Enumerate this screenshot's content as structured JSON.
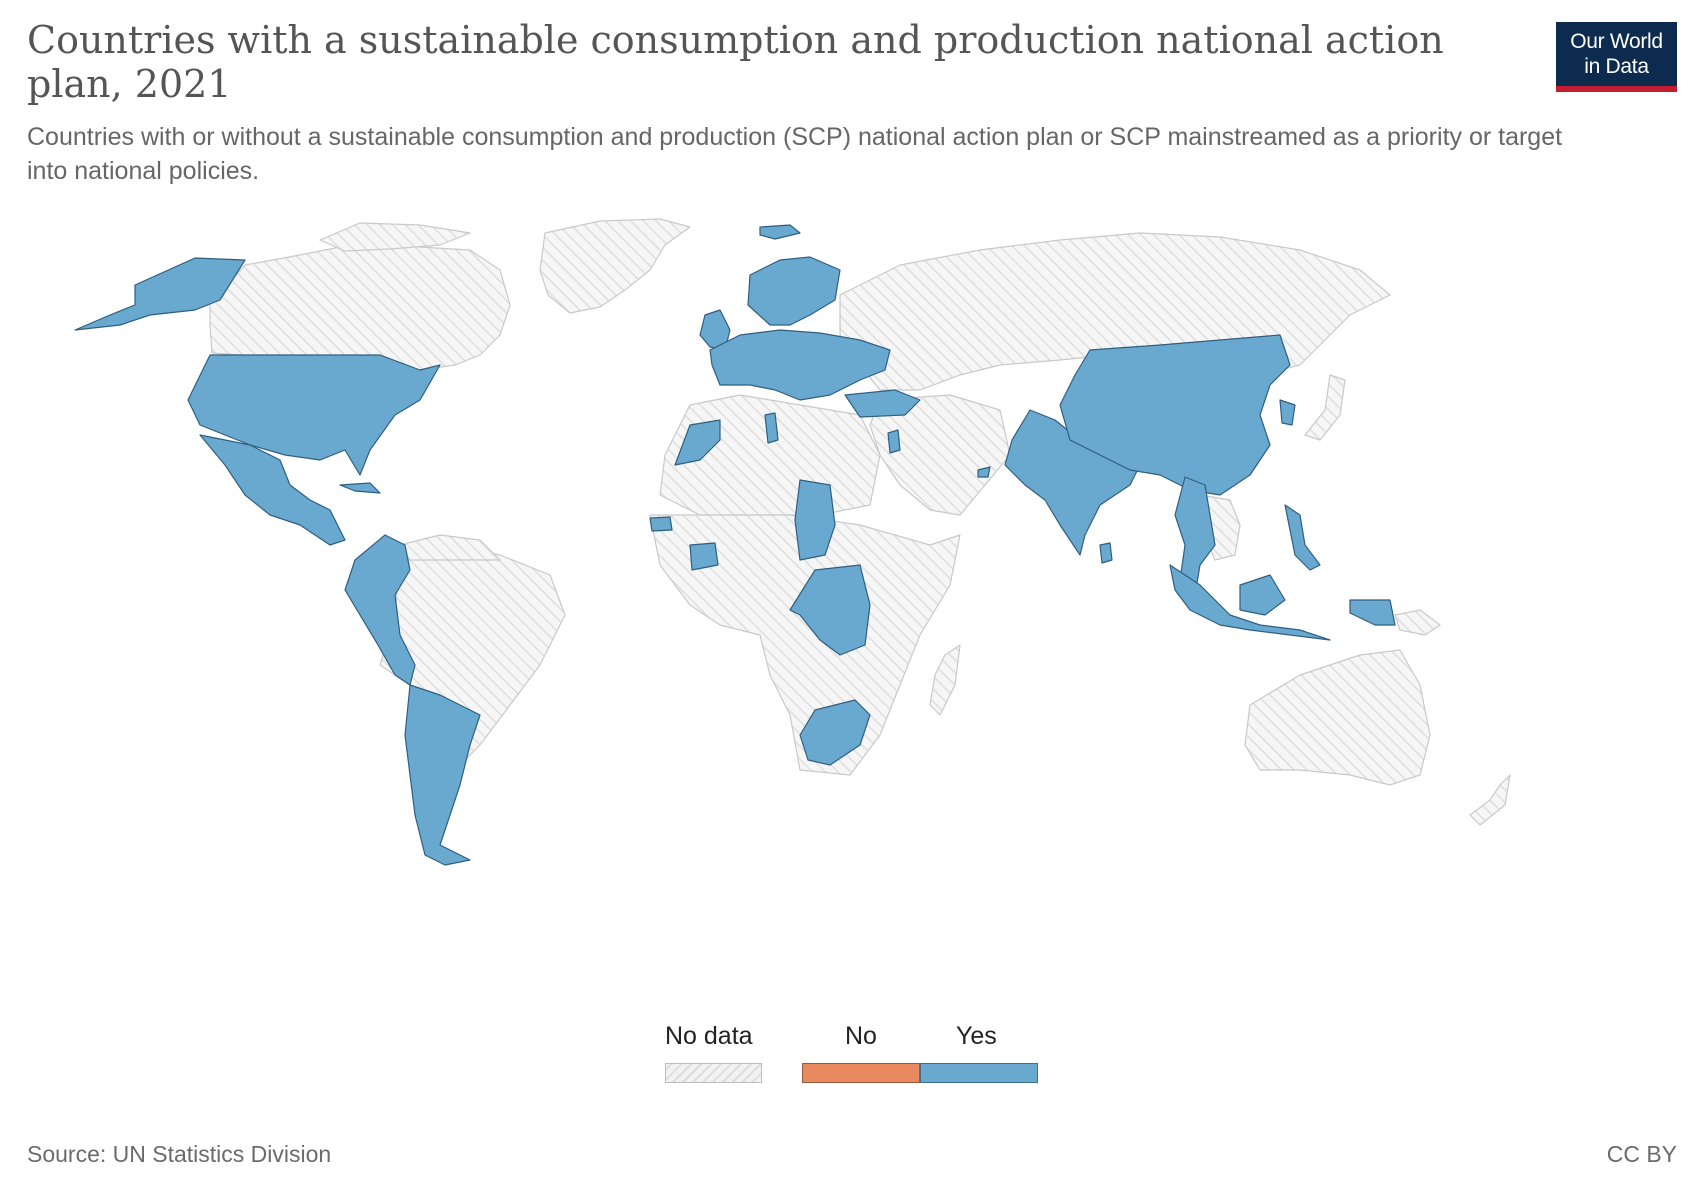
{
  "header": {
    "title": "Countries with a sustainable consumption and production national action plan, 2021",
    "subtitle": "Countries with or without a sustainable consumption and production (SCP) national action plan or SCP mainstreamed as a priority or target into national policies.",
    "logo_line1": "Our World",
    "logo_line2": "in Data"
  },
  "legend": {
    "items": [
      {
        "label": "No data",
        "key": "nodata"
      },
      {
        "label": "No",
        "key": "no",
        "color": "#e8895f"
      },
      {
        "label": "Yes",
        "key": "yes",
        "color": "#6aa9cf"
      }
    ]
  },
  "footer": {
    "source": "Source: UN Statistics Division",
    "license": "CC BY"
  },
  "map_data": {
    "type": "choropleth",
    "year": 2021,
    "colors": {
      "yes": "#6aa9cf",
      "no": "#e8895f",
      "nodata_fill": "#f2f2f2",
      "border": "#c9c9c9",
      "yes_border": "#2f5f80"
    },
    "yes_countries": [
      "United States",
      "Mexico",
      "Guatemala",
      "Honduras",
      "El Salvador",
      "Nicaragua",
      "Costa Rica",
      "Cuba",
      "Colombia",
      "Ecuador",
      "Peru",
      "Chile",
      "Argentina",
      "Alaska (United States)",
      "Iceland",
      "Norway",
      "Sweden",
      "Finland",
      "Ireland",
      "United Kingdom",
      "France",
      "Spain",
      "Portugal",
      "Belgium",
      "Netherlands",
      "Germany",
      "Poland",
      "Czechia",
      "Austria",
      "Switzerland",
      "Slovakia",
      "Hungary",
      "Slovenia",
      "Croatia",
      "Serbia",
      "Romania",
      "Bulgaria",
      "Ukraine",
      "Moldova",
      "Lithuania",
      "Italy",
      "Turkey",
      "Morocco",
      "Tunisia",
      "Israel",
      "Jordan",
      "United Arab Emirates",
      "Senegal",
      "Gambia",
      "Cote d'Ivoire",
      "Ghana",
      "Chad",
      "Democratic Republic of Congo",
      "South Africa",
      "Pakistan",
      "India",
      "Sri Lanka",
      "Bangladesh",
      "Bhutan",
      "China",
      "Mongolia",
      "South Korea",
      "Myanmar",
      "Thailand",
      "Malaysia",
      "Philippines",
      "Indonesia",
      "Taiwan"
    ],
    "no_countries": []
  }
}
